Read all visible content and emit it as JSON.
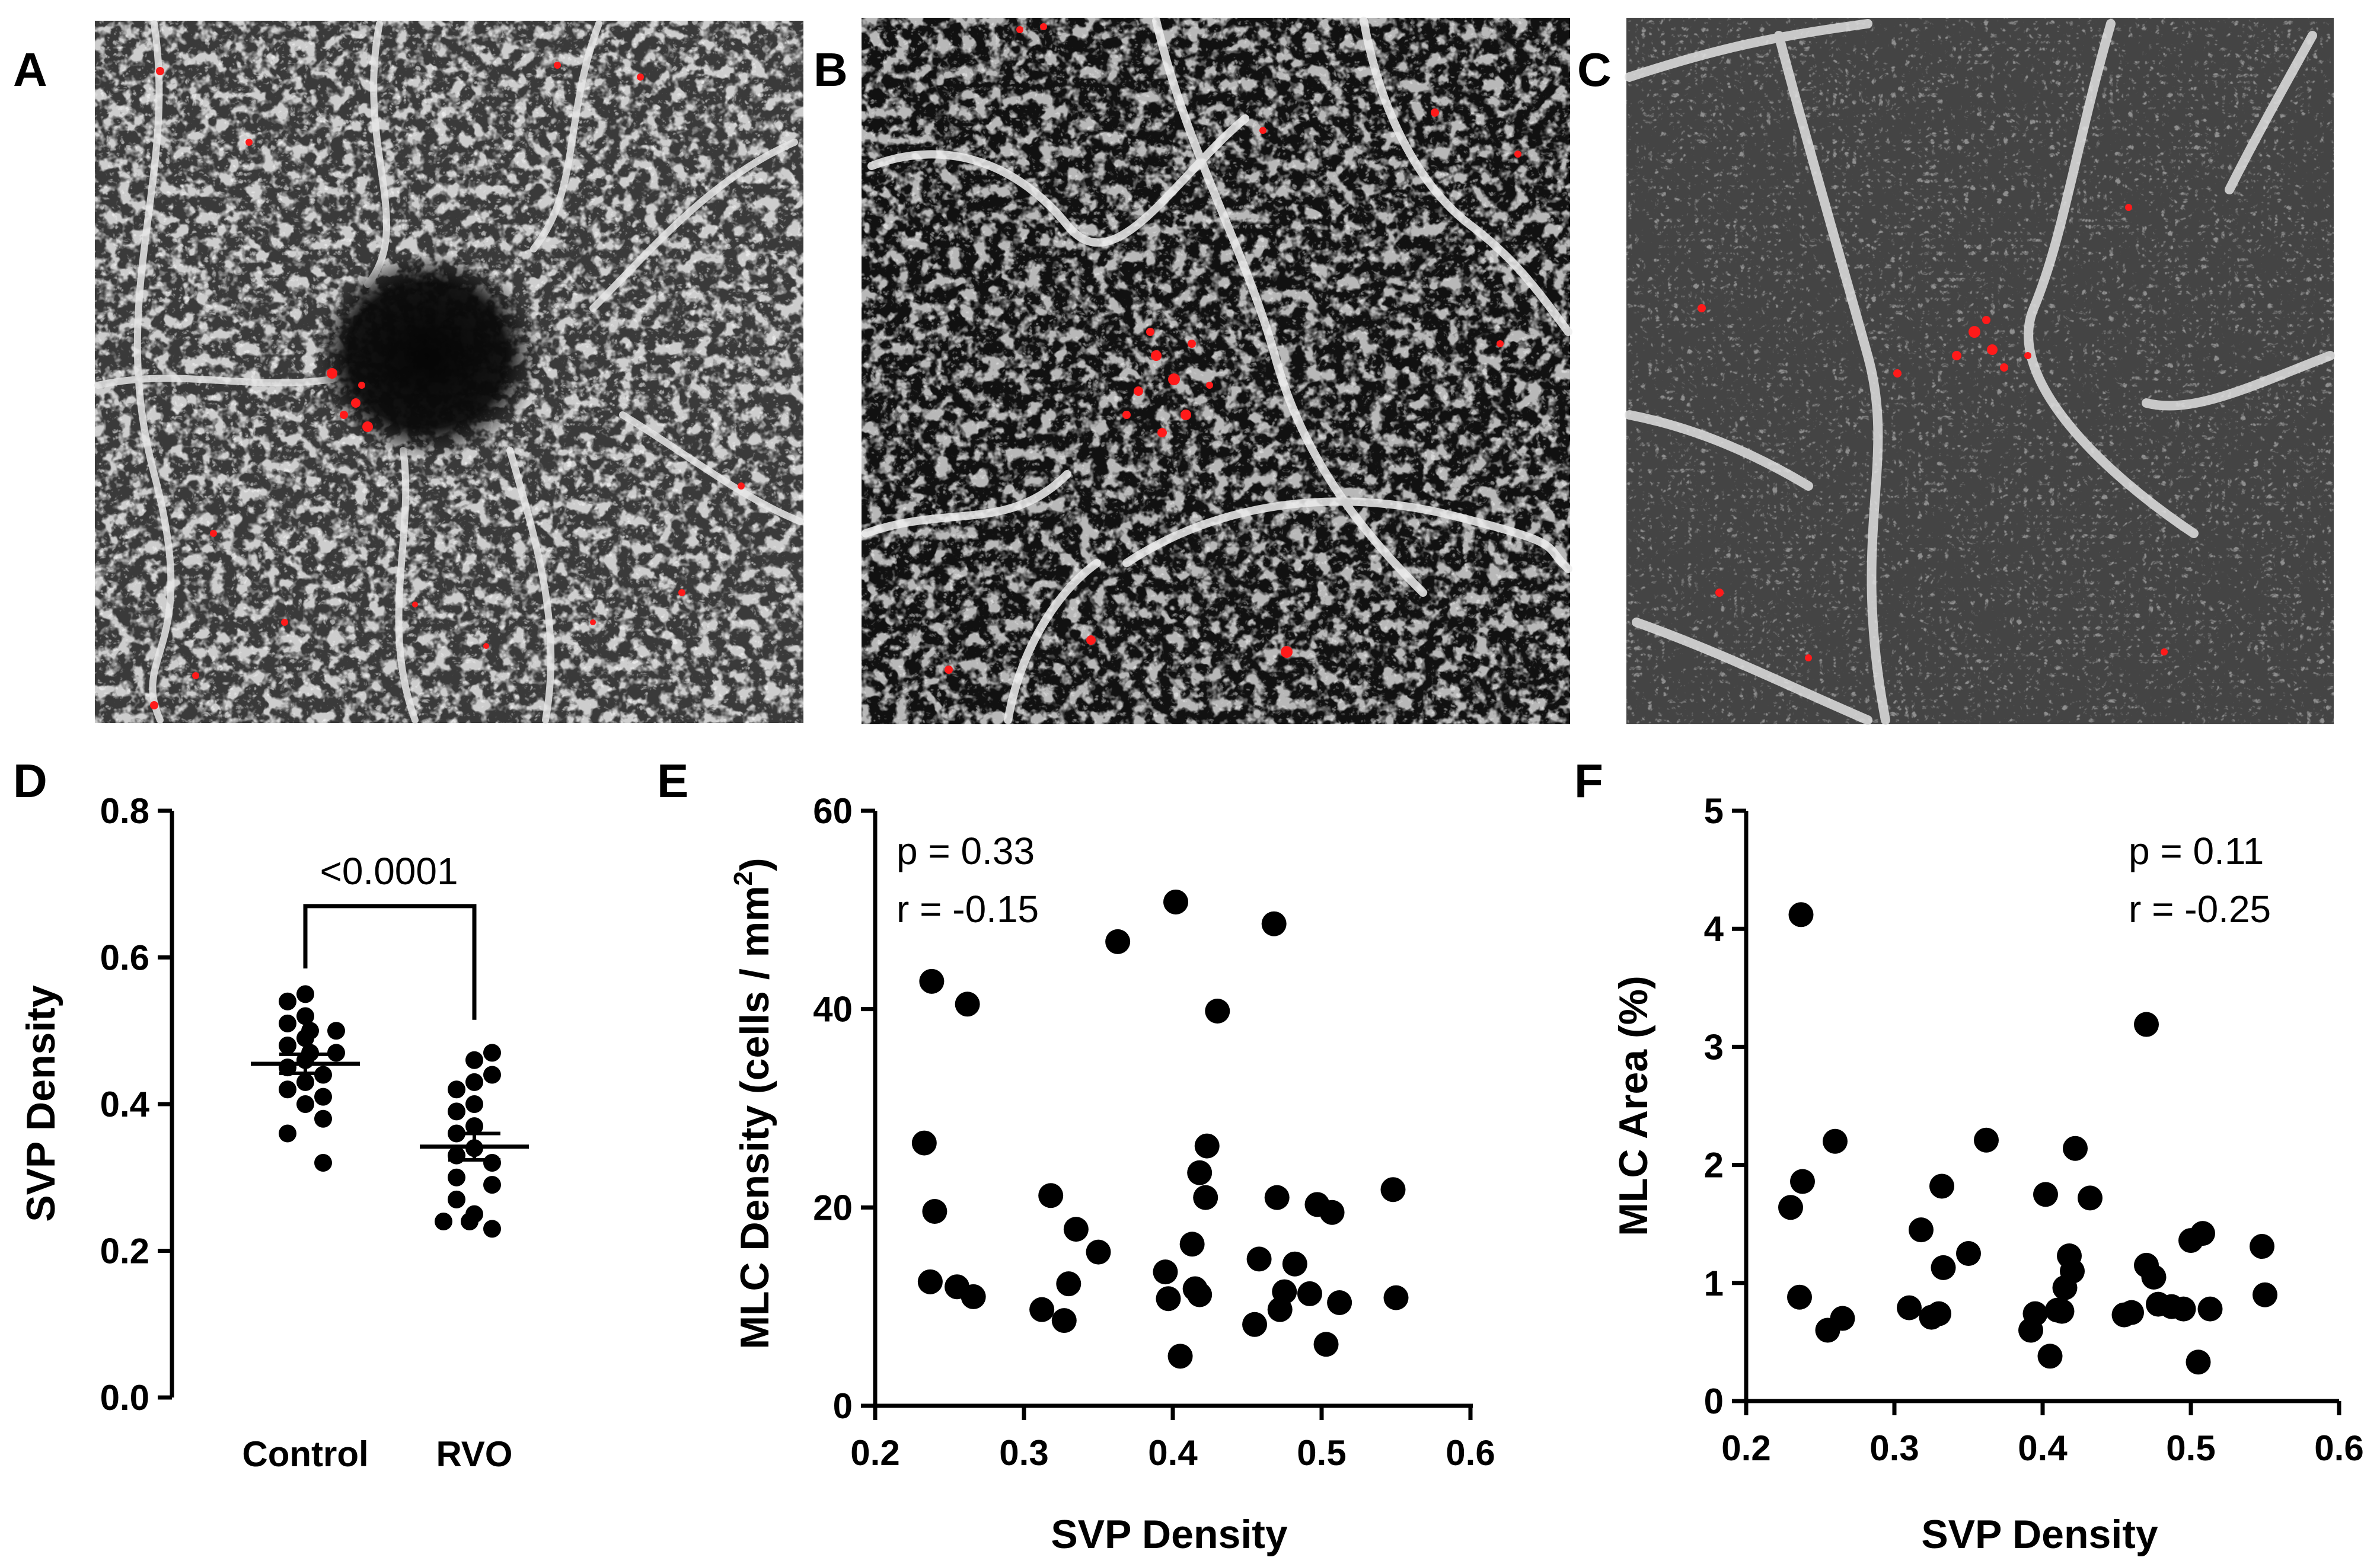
{
  "panel_letters": [
    "A",
    "B",
    "C",
    "D",
    "E",
    "F"
  ],
  "chart_data": [
    {
      "panel": "D",
      "type": "scatter",
      "categories": [
        "Control",
        "RVO"
      ],
      "ylabel": "SVP Density",
      "ylim": [
        0,
        0.8
      ],
      "yticks": [
        "0.0",
        "0.2",
        "0.4",
        "0.6",
        "0.8"
      ],
      "significance": "<0.0001",
      "series": [
        {
          "category": "Control",
          "mean": 0.455,
          "sem": 0.013,
          "values": [
            0.55,
            0.54,
            0.52,
            0.51,
            0.5,
            0.5,
            0.49,
            0.48,
            0.47,
            0.47,
            0.46,
            0.45,
            0.44,
            0.43,
            0.42,
            0.41,
            0.4,
            0.38,
            0.36,
            0.32
          ]
        },
        {
          "category": "RVO",
          "mean": 0.342,
          "sem": 0.018,
          "values": [
            0.47,
            0.46,
            0.44,
            0.43,
            0.42,
            0.4,
            0.39,
            0.37,
            0.36,
            0.34,
            0.33,
            0.32,
            0.3,
            0.29,
            0.27,
            0.25,
            0.24,
            0.24,
            0.23
          ]
        }
      ]
    },
    {
      "panel": "E",
      "type": "scatter",
      "xlabel": "SVP Density",
      "ylabel_main": "MLC Density (cells / mm",
      "ylabel_sup": "2",
      "ylabel_close": ")",
      "xlim": [
        0.2,
        0.6
      ],
      "ylim": [
        0,
        60
      ],
      "xticks": [
        "0.2",
        "0.3",
        "0.4",
        "0.5",
        "0.6"
      ],
      "yticks": [
        "0",
        "20",
        "40",
        "60"
      ],
      "annotation": [
        "p = 0.33",
        "r = -0.15"
      ],
      "points": [
        [
          0.233,
          26.5
        ],
        [
          0.238,
          42.8
        ],
        [
          0.237,
          12.5
        ],
        [
          0.24,
          19.6
        ],
        [
          0.255,
          12.0
        ],
        [
          0.262,
          40.5
        ],
        [
          0.266,
          11.0
        ],
        [
          0.312,
          9.7
        ],
        [
          0.318,
          21.2
        ],
        [
          0.327,
          8.6
        ],
        [
          0.33,
          12.3
        ],
        [
          0.335,
          17.8
        ],
        [
          0.35,
          15.5
        ],
        [
          0.363,
          46.8
        ],
        [
          0.395,
          13.5
        ],
        [
          0.397,
          10.8
        ],
        [
          0.402,
          50.8
        ],
        [
          0.405,
          5.0
        ],
        [
          0.413,
          16.3
        ],
        [
          0.415,
          11.8
        ],
        [
          0.418,
          11.2
        ],
        [
          0.418,
          23.5
        ],
        [
          0.422,
          21.0
        ],
        [
          0.423,
          26.2
        ],
        [
          0.43,
          39.8
        ],
        [
          0.455,
          8.2
        ],
        [
          0.458,
          14.8
        ],
        [
          0.468,
          48.6
        ],
        [
          0.47,
          21.0
        ],
        [
          0.472,
          9.7
        ],
        [
          0.475,
          11.5
        ],
        [
          0.482,
          14.3
        ],
        [
          0.492,
          11.3
        ],
        [
          0.497,
          20.3
        ],
        [
          0.503,
          6.2
        ],
        [
          0.507,
          19.5
        ],
        [
          0.512,
          10.4
        ],
        [
          0.548,
          21.8
        ],
        [
          0.55,
          10.9
        ]
      ]
    },
    {
      "panel": "F",
      "type": "scatter",
      "xlabel": "SVP Density",
      "ylabel": "MLC Area (%)",
      "xlim": [
        0.2,
        0.6
      ],
      "ylim": [
        0,
        5
      ],
      "xticks": [
        "0.2",
        "0.3",
        "0.4",
        "0.5",
        "0.6"
      ],
      "yticks": [
        "0",
        "1",
        "2",
        "3",
        "4",
        "5"
      ],
      "annotation": [
        "p = 0.11",
        "r = -0.25"
      ],
      "points": [
        [
          0.23,
          1.64
        ],
        [
          0.236,
          0.88
        ],
        [
          0.237,
          4.12
        ],
        [
          0.238,
          1.86
        ],
        [
          0.255,
          0.6
        ],
        [
          0.26,
          2.2
        ],
        [
          0.265,
          0.7
        ],
        [
          0.31,
          0.79
        ],
        [
          0.318,
          1.45
        ],
        [
          0.325,
          0.71
        ],
        [
          0.33,
          0.74
        ],
        [
          0.332,
          1.82
        ],
        [
          0.333,
          1.13
        ],
        [
          0.35,
          1.25
        ],
        [
          0.362,
          2.21
        ],
        [
          0.392,
          0.6
        ],
        [
          0.395,
          0.74
        ],
        [
          0.402,
          1.75
        ],
        [
          0.405,
          0.38
        ],
        [
          0.41,
          0.77
        ],
        [
          0.413,
          0.76
        ],
        [
          0.415,
          0.96
        ],
        [
          0.418,
          1.23
        ],
        [
          0.42,
          1.1
        ],
        [
          0.422,
          2.14
        ],
        [
          0.432,
          1.72
        ],
        [
          0.455,
          0.73
        ],
        [
          0.46,
          0.75
        ],
        [
          0.47,
          3.19
        ],
        [
          0.47,
          1.15
        ],
        [
          0.475,
          1.05
        ],
        [
          0.478,
          0.82
        ],
        [
          0.487,
          0.8
        ],
        [
          0.495,
          0.78
        ],
        [
          0.5,
          1.36
        ],
        [
          0.505,
          0.33
        ],
        [
          0.508,
          1.42
        ],
        [
          0.513,
          0.78
        ],
        [
          0.548,
          1.31
        ],
        [
          0.55,
          0.9
        ]
      ]
    }
  ]
}
